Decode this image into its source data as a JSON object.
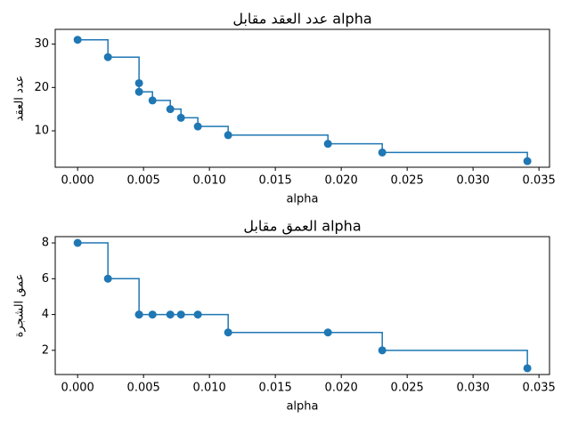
{
  "chart_data": [
    {
      "type": "line",
      "drawstyle": "steps-post",
      "marker": "o",
      "color": "#1f77b4",
      "title": "عدد العقد مقابل alpha",
      "xlabel": "alpha",
      "ylabel": "عدد العقد",
      "x": [
        0,
        0.0023,
        0.00466,
        0.00466,
        0.00568,
        0.00703,
        0.00784,
        0.00912,
        0.01142,
        0.01899,
        0.02311,
        0.03412
      ],
      "values": [
        31,
        27,
        21,
        19,
        17,
        15,
        13,
        11,
        9,
        7,
        5,
        3
      ],
      "xlim": [
        -0.0017,
        0.0358
      ],
      "ylim": [
        1.6,
        33.4
      ],
      "xticks": [
        {
          "value": 0,
          "label": "0.000"
        },
        {
          "value": 0.005,
          "label": "0.005"
        },
        {
          "value": 0.01,
          "label": "0.010"
        },
        {
          "value": 0.015,
          "label": "0.015"
        },
        {
          "value": 0.02,
          "label": "0.020"
        },
        {
          "value": 0.025,
          "label": "0.025"
        },
        {
          "value": 0.03,
          "label": "0.030"
        },
        {
          "value": 0.035,
          "label": "0.035"
        }
      ],
      "yticks": [
        10,
        20,
        30
      ]
    },
    {
      "type": "line",
      "drawstyle": "steps-post",
      "marker": "o",
      "color": "#1f77b4",
      "title": "العمق مقابل alpha",
      "xlabel": "alpha",
      "ylabel": "عمق الشجرة",
      "x": [
        0,
        0.0023,
        0.00466,
        0.00466,
        0.00568,
        0.00703,
        0.00784,
        0.00912,
        0.01142,
        0.01899,
        0.02311,
        0.03412
      ],
      "values": [
        8,
        6,
        4,
        4,
        4,
        4,
        4,
        4,
        3,
        3,
        2,
        1
      ],
      "xlim": [
        -0.0017,
        0.0358
      ],
      "ylim": [
        0.65,
        8.35
      ],
      "xticks": [
        {
          "value": 0,
          "label": "0.000"
        },
        {
          "value": 0.005,
          "label": "0.005"
        },
        {
          "value": 0.01,
          "label": "0.010"
        },
        {
          "value": 0.015,
          "label": "0.015"
        },
        {
          "value": 0.02,
          "label": "0.020"
        },
        {
          "value": 0.025,
          "label": "0.025"
        },
        {
          "value": 0.03,
          "label": "0.030"
        },
        {
          "value": 0.035,
          "label": "0.035"
        }
      ],
      "yticks": [
        2,
        4,
        6,
        8
      ]
    }
  ]
}
